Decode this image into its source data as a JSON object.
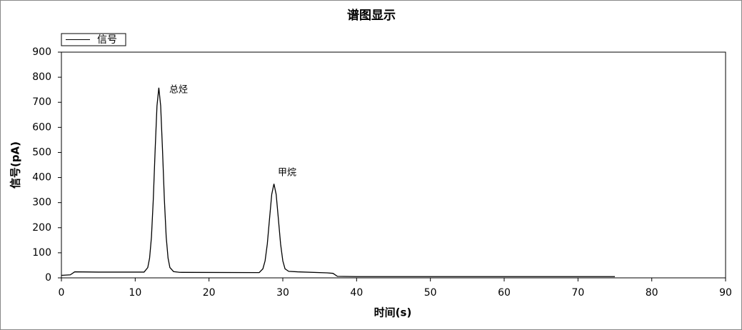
{
  "chart_data": {
    "type": "line",
    "title": "谱图显示",
    "x_label": "时间(s)",
    "y_label": "信号(pA)",
    "legend": "top-left",
    "grid": false,
    "annotations": [
      "总烃",
      "甲烷"
    ],
    "xlim": [
      0,
      90
    ],
    "ylim": [
      0,
      900
    ],
    "xticks": [
      0,
      10,
      20,
      30,
      40,
      50,
      60,
      70,
      80,
      90
    ],
    "yticks": [
      0,
      100,
      200,
      300,
      400,
      500,
      600,
      700,
      800,
      900
    ],
    "x": [
      0,
      1.2,
      1.8,
      5,
      11.2,
      11.7,
      11.95,
      12.2,
      12.45,
      12.7,
      12.95,
      13.2,
      13.45,
      13.7,
      13.95,
      14.2,
      14.45,
      14.7,
      15.2,
      16,
      26.8,
      27.3,
      27.6,
      27.9,
      28.2,
      28.5,
      28.8,
      29.1,
      29.4,
      29.7,
      30,
      30.3,
      30.8,
      32,
      36,
      36.8,
      37.4,
      40,
      75
    ],
    "series": [
      {
        "name": "信号",
        "color": "#000000",
        "values": [
          10,
          12,
          24,
          23,
          23,
          41,
          79,
          163,
          313,
          509,
          686,
          758,
          686,
          509,
          313,
          163,
          79,
          41,
          25,
          22,
          21,
          36,
          68,
          135,
          235,
          333,
          375,
          333,
          235,
          135,
          68,
          36,
          26,
          24,
          20,
          18,
          6,
          5,
          5
        ]
      }
    ]
  }
}
